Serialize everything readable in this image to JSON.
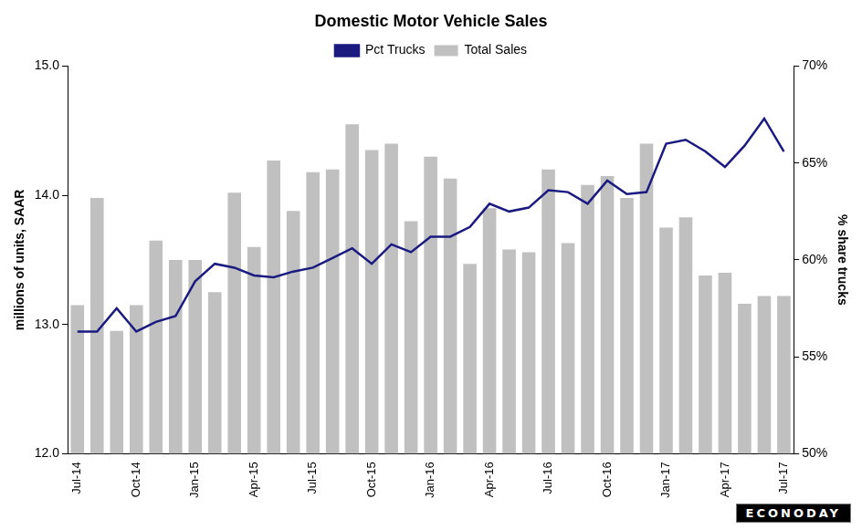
{
  "chart_data": {
    "type": "bar",
    "title": "Domestic Motor Vehicle Sales",
    "y_label": "millions of units, SAAR",
    "y2_label": "% share trucks",
    "annotation": "ECONODAY",
    "categories": [
      "Jul-14",
      null,
      null,
      "Oct-14",
      null,
      null,
      "Jan-15",
      null,
      null,
      "Apr-15",
      null,
      null,
      "Jul-15",
      null,
      null,
      "Oct-15",
      null,
      null,
      "Jan-16",
      null,
      null,
      "Apr-16",
      null,
      null,
      "Jul-16",
      null,
      null,
      "Oct-16",
      null,
      null,
      "Jan-17",
      null,
      null,
      "Apr-17",
      null,
      null,
      "Jul-17"
    ],
    "series": [
      {
        "name": "Total Sales",
        "type": "bar",
        "color": "#c0c0c0",
        "values": [
          13.15,
          13.98,
          12.95,
          13.15,
          13.65,
          13.5,
          13.5,
          13.25,
          14.02,
          13.6,
          14.27,
          13.88,
          14.18,
          14.2,
          14.55,
          14.35,
          14.4,
          13.8,
          14.3,
          14.13,
          13.47,
          13.9,
          13.58,
          13.56,
          14.2,
          13.63,
          14.08,
          14.15,
          13.98,
          14.4,
          13.75,
          13.83,
          13.38,
          13.4,
          13.16,
          13.22,
          13.22
        ]
      },
      {
        "name": "Pct Trucks",
        "type": "line",
        "color": "#1a1a80",
        "axis": "y2",
        "values": [
          56.3,
          56.3,
          57.5,
          56.3,
          56.8,
          57.1,
          58.9,
          59.8,
          59.6,
          59.2,
          59.1,
          59.4,
          59.6,
          60.1,
          60.6,
          59.8,
          60.8,
          60.4,
          61.2,
          61.2,
          61.7,
          62.9,
          62.5,
          62.7,
          63.6,
          63.5,
          62.9,
          64.1,
          63.4,
          63.5,
          66.0,
          66.2,
          65.6,
          64.8,
          65.9,
          67.3,
          65.6
        ]
      }
    ],
    "ylim": [
      12,
      15
    ],
    "yticks": [
      {
        "value": 12,
        "label": "12.0"
      },
      {
        "value": 13,
        "label": "13.0"
      },
      {
        "value": 14,
        "label": "14.0"
      },
      {
        "value": 15,
        "label": "15.0"
      }
    ],
    "y2lim": [
      50,
      70
    ],
    "y2ticks": [
      {
        "value": 50,
        "label": "50%"
      },
      {
        "value": 55,
        "label": "55%"
      },
      {
        "value": 60,
        "label": "60%"
      },
      {
        "value": 65,
        "label": "65%"
      },
      {
        "value": 70,
        "label": "70%"
      }
    ],
    "grid": false,
    "legend": "top"
  }
}
